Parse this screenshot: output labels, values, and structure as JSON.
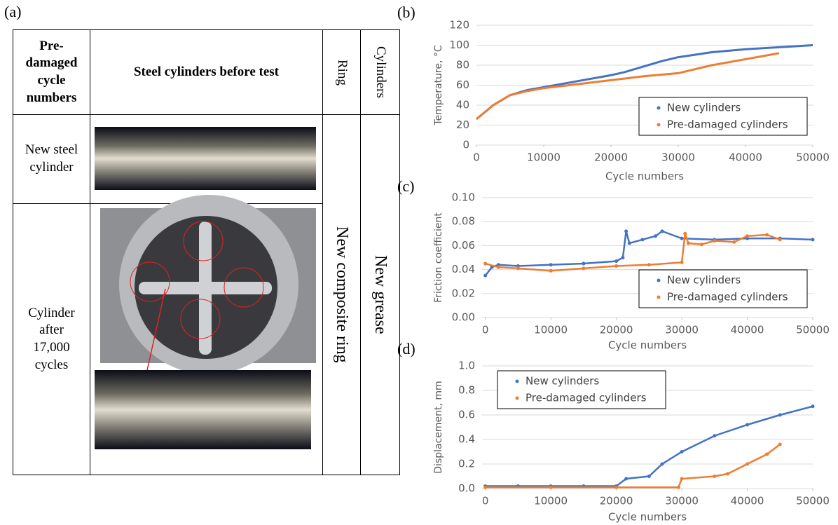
{
  "figure_a": {
    "panel": "(a)",
    "table": {
      "header": [
        "Pre-damaged cycle numbers",
        "Steel cylinders before test",
        "Ring",
        "Cylinders"
      ],
      "rows": [
        [
          "New steel cylinder"
        ],
        [
          "Cylinder after 17,000 cycles"
        ]
      ],
      "ring": "New composite ring",
      "grease": "New grease"
    }
  },
  "chart_data": [
    {
      "type": "line",
      "panel": "(b)",
      "x_label": "Cycle numbers",
      "y_label": "Temperature, °C",
      "xlim": [
        0,
        50000
      ],
      "xticks": [
        0,
        10000,
        20000,
        30000,
        40000,
        50000
      ],
      "ylim": [
        0,
        120
      ],
      "yticks": [
        0,
        20,
        40,
        60,
        80,
        100,
        120
      ],
      "grid": true,
      "legend": "lower right",
      "series": [
        {
          "name": "New cylinders",
          "color": "#4472c4",
          "x": [
            0,
            2500,
            5000,
            7500,
            10000,
            15000,
            20000,
            22000,
            25000,
            27500,
            30000,
            35000,
            40000,
            45000,
            50000
          ],
          "values": [
            26,
            40,
            50,
            55,
            58,
            64,
            70,
            73,
            79,
            84,
            88,
            93,
            96,
            98,
            100
          ]
        },
        {
          "name": "Pre-damaged cylinders",
          "color": "#ed7d31",
          "x": [
            0,
            2500,
            5000,
            7500,
            10000,
            15000,
            20000,
            25000,
            30000,
            35000,
            40000,
            45000
          ],
          "values": [
            26,
            40,
            50,
            54,
            57,
            61,
            65,
            69,
            72,
            80,
            86,
            92
          ]
        }
      ]
    },
    {
      "type": "scatter",
      "panel": "(c)",
      "x_label": "Cycle numbers",
      "y_label": "Friction coefficient",
      "xlim": [
        -500,
        50000
      ],
      "xticks": [
        0,
        10000,
        20000,
        30000,
        40000,
        50000
      ],
      "ylim": [
        0,
        0.1
      ],
      "yticks": [
        {
          "value": 0,
          "label": "0.00"
        },
        {
          "value": 0.02,
          "label": "0.02"
        },
        {
          "value": 0.04,
          "label": "0.04"
        },
        {
          "value": 0.06,
          "label": "0.06"
        },
        {
          "value": 0.08,
          "label": "0.08"
        },
        {
          "value": 0.1,
          "label": "0.10"
        }
      ],
      "grid": true,
      "legend": "lower right",
      "series": [
        {
          "name": "New cylinders",
          "color": "#4472c4",
          "x": [
            0,
            1000,
            2000,
            5000,
            10000,
            15000,
            20000,
            21000,
            21500,
            22000,
            24000,
            26000,
            27000,
            30000,
            35000,
            40000,
            45000,
            50000
          ],
          "values": [
            0.035,
            0.042,
            0.044,
            0.043,
            0.044,
            0.045,
            0.047,
            0.05,
            0.072,
            0.062,
            0.065,
            0.068,
            0.072,
            0.066,
            0.065,
            0.066,
            0.066,
            0.065
          ]
        },
        {
          "name": "Pre-damaged cylinders",
          "color": "#ed7d31",
          "x": [
            0,
            2000,
            5000,
            10000,
            15000,
            20000,
            25000,
            30000,
            30500,
            31000,
            33000,
            35000,
            38000,
            40000,
            43000,
            45000
          ],
          "values": [
            0.045,
            0.042,
            0.041,
            0.039,
            0.041,
            0.043,
            0.044,
            0.046,
            0.07,
            0.062,
            0.061,
            0.064,
            0.063,
            0.068,
            0.069,
            0.065
          ]
        }
      ]
    },
    {
      "type": "scatter",
      "panel": "(d)",
      "x_label": "Cycle numbers",
      "y_label": "Displacement, mm",
      "xlim": [
        -500,
        50000
      ],
      "xticks": [
        0,
        10000,
        20000,
        30000,
        40000,
        50000
      ],
      "ylim": [
        0,
        1
      ],
      "yticks": [
        {
          "value": 0,
          "label": "0.0"
        },
        {
          "value": 0.2,
          "label": "0.2"
        },
        {
          "value": 0.4,
          "label": "0.4"
        },
        {
          "value": 0.6,
          "label": "0.6"
        },
        {
          "value": 0.8,
          "label": "0.8"
        },
        {
          "value": 1,
          "label": "1.0"
        }
      ],
      "grid": true,
      "legend": "upper left",
      "series": [
        {
          "name": "New cylinders",
          "color": "#4472c4",
          "x": [
            0,
            5000,
            10000,
            15000,
            20000,
            21500,
            25000,
            27000,
            30000,
            35000,
            40000,
            45000,
            50000
          ],
          "values": [
            0.02,
            0.02,
            0.02,
            0.02,
            0.02,
            0.08,
            0.1,
            0.2,
            0.3,
            0.43,
            0.52,
            0.6,
            0.67
          ]
        },
        {
          "name": "Pre-damaged cylinders",
          "color": "#ed7d31",
          "x": [
            0,
            10000,
            20000,
            29500,
            30000,
            35000,
            37000,
            40000,
            43000,
            45000
          ],
          "values": [
            0.01,
            0.01,
            0.01,
            0.01,
            0.08,
            0.1,
            0.12,
            0.2,
            0.28,
            0.36
          ]
        }
      ]
    }
  ]
}
